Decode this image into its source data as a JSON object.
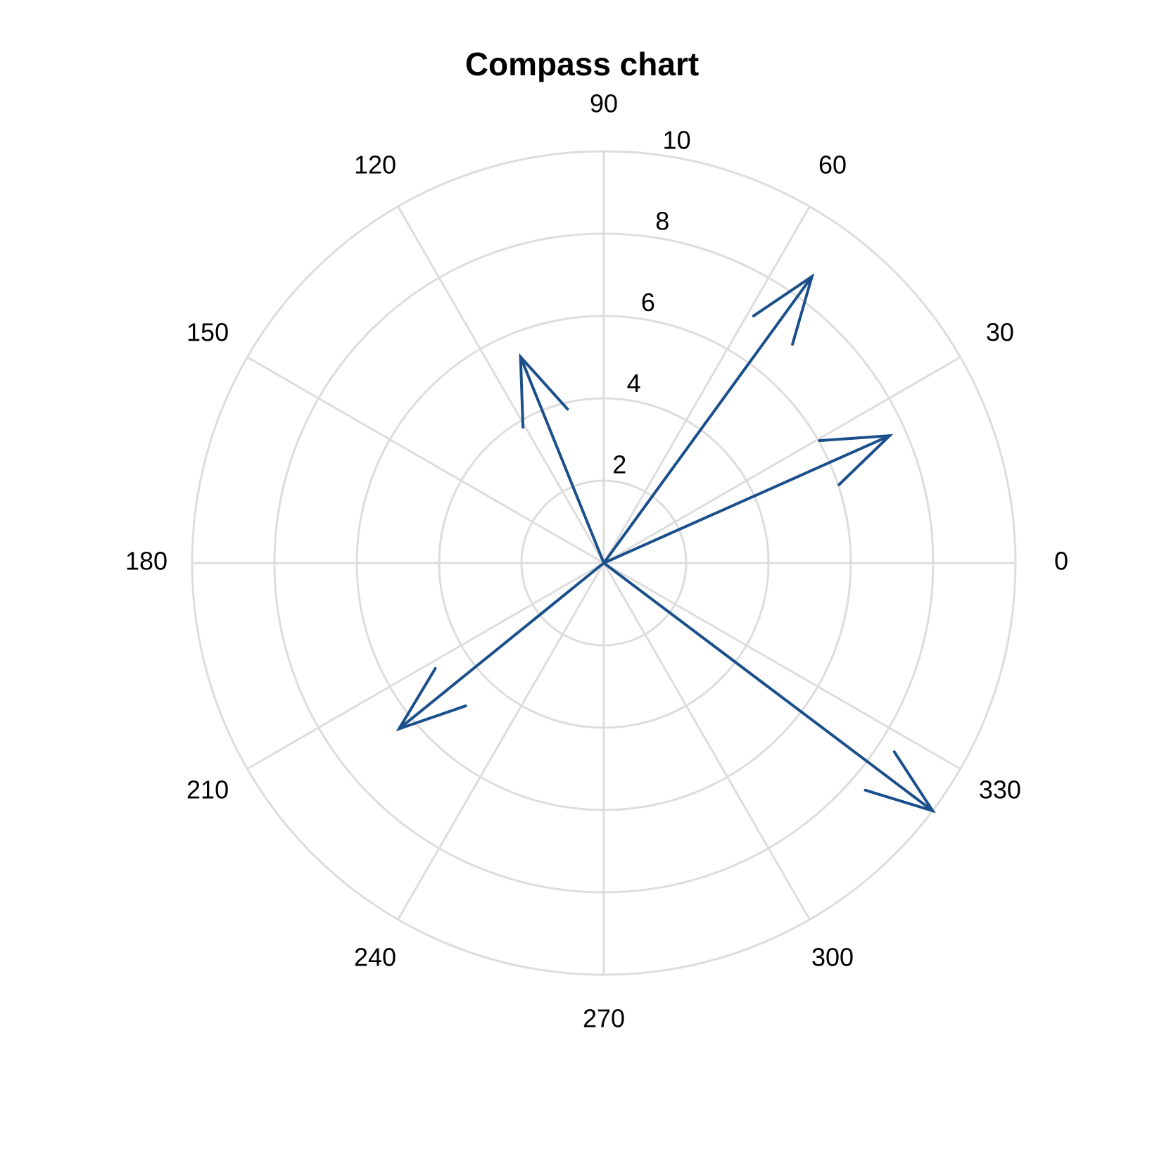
{
  "chart_data": {
    "type": "compass",
    "title": "Compass chart",
    "r_ticks": [
      2,
      4,
      6,
      8,
      10
    ],
    "r_max": 10,
    "theta_ticks": [
      0,
      30,
      60,
      90,
      120,
      150,
      180,
      210,
      240,
      270,
      300,
      330
    ],
    "grid": true,
    "colors": {
      "grid": "#dddddd",
      "arrow": "#1a4f8b"
    },
    "vectors": [
      {
        "angle_deg": 24,
        "magnitude": 7.6
      },
      {
        "angle_deg": 54,
        "magnitude": 8.6
      },
      {
        "angle_deg": 112,
        "magnitude": 5.4
      },
      {
        "angle_deg": 219,
        "magnitude": 6.4
      },
      {
        "angle_deg": 323,
        "magnitude": 10.0
      }
    ]
  }
}
